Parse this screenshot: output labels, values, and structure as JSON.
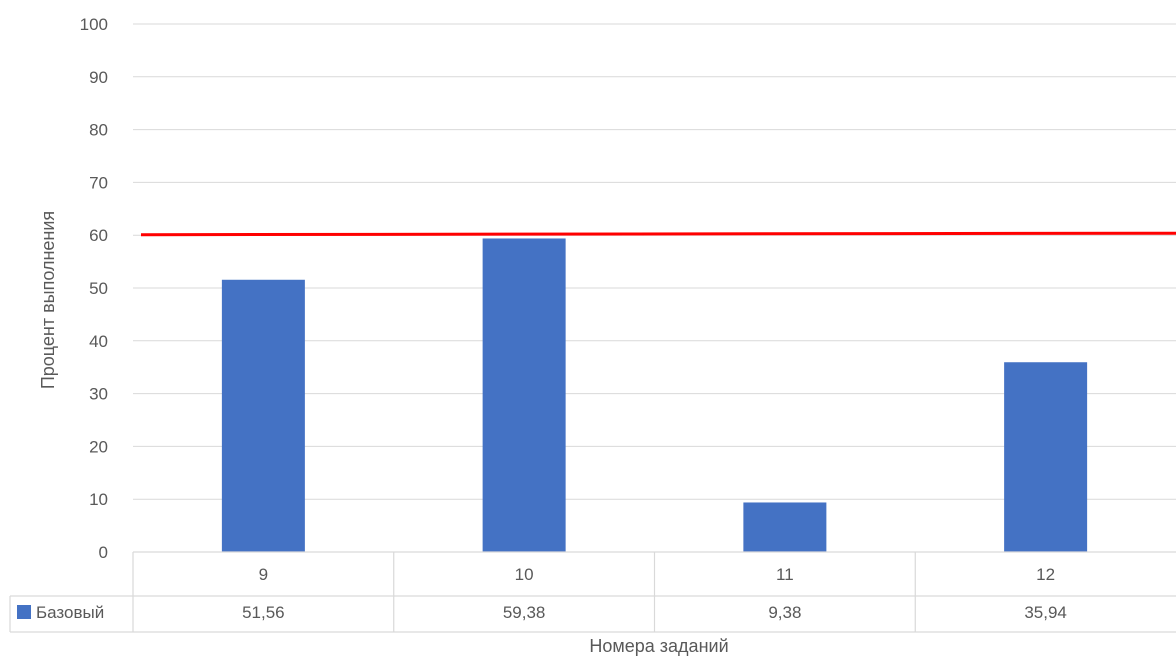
{
  "chart_data": {
    "type": "bar",
    "categories": [
      "9",
      "10",
      "11",
      "12"
    ],
    "series": [
      {
        "name": "Базовый",
        "values": [
          51.56,
          59.38,
          9.38,
          35.94
        ],
        "labels": [
          "51,56",
          "59,38",
          "9,38",
          "35,94"
        ],
        "color": "#4472C4"
      }
    ],
    "reference_line": {
      "value": 60,
      "color": "#FF0000"
    },
    "ylim": [
      0,
      100
    ],
    "yticks": [
      "0",
      "10",
      "20",
      "30",
      "40",
      "50",
      "60",
      "70",
      "80",
      "90",
      "100"
    ],
    "xlabel": "Номера заданий",
    "ylabel": "Процент выполнения",
    "grid": true,
    "data_table": true,
    "colors": {
      "gridline": "#D9D9D9",
      "text": "#595959",
      "table_border": "#D9D9D9"
    }
  }
}
